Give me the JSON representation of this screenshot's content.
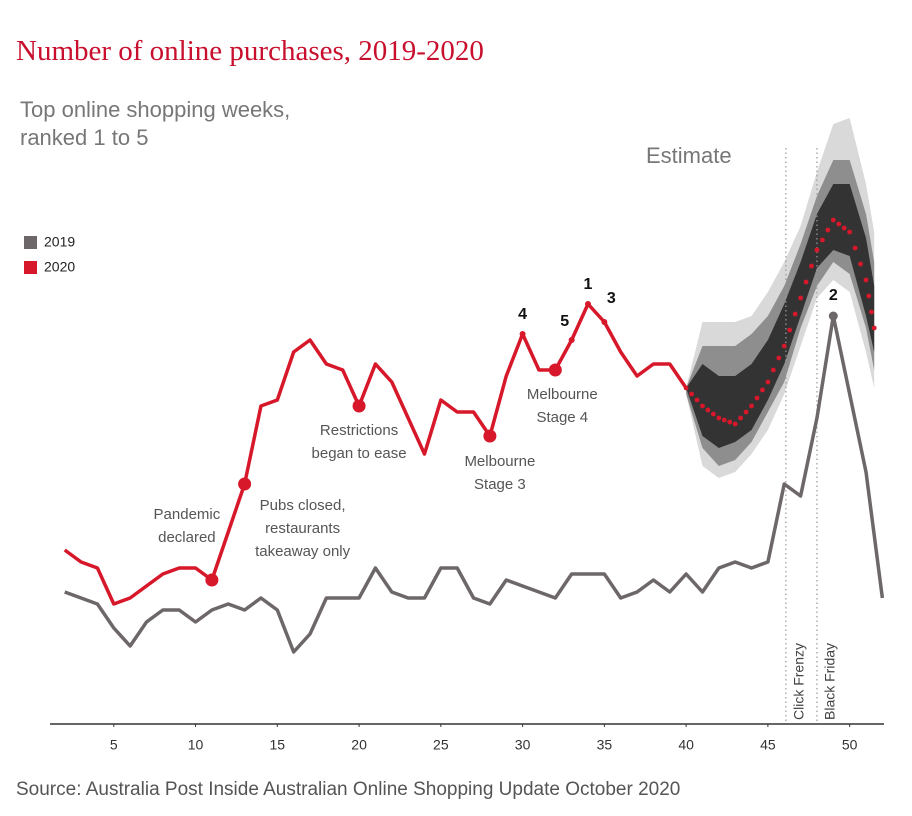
{
  "chart_data": {
    "type": "line",
    "title": "Number of online purchases, 2019-2020",
    "subtitle": [
      "Top online shopping weeks,",
      "ranked 1 to 5"
    ],
    "source": "Source: Australia Post Inside Australian Online Shopping Update October 2020",
    "xlim": [
      1.1,
      52.1
    ],
    "xticks": [
      5,
      10,
      15,
      20,
      25,
      30,
      35,
      40,
      45,
      50
    ],
    "ylim": [
      0,
      104
    ],
    "series": [
      {
        "name": "2019",
        "color": "#6d6769",
        "x": [
          2,
          3,
          4,
          5,
          6,
          7,
          8,
          9,
          10,
          11,
          12,
          13,
          14,
          15,
          16,
          17,
          18,
          19,
          20,
          21,
          22,
          23,
          24,
          25,
          26,
          27,
          28,
          29,
          30,
          31,
          32,
          33,
          34,
          35,
          36,
          37,
          38,
          39,
          40,
          41,
          42,
          43,
          44,
          45,
          46,
          47,
          48,
          49,
          50,
          51,
          52
        ],
        "values": [
          22,
          21,
          20,
          16,
          13,
          17,
          19,
          19,
          17,
          19,
          20,
          19,
          21,
          19,
          12,
          15,
          21,
          21,
          21,
          26,
          22,
          21,
          21,
          26,
          26,
          21,
          20,
          24,
          23,
          22,
          21,
          25,
          25,
          25,
          21,
          22,
          24,
          22,
          25,
          22,
          26,
          27,
          26,
          27,
          40,
          38,
          51,
          68,
          55,
          42,
          21
        ]
      },
      {
        "name": "2020",
        "color": "#d7182a",
        "x": [
          2,
          3,
          4,
          5,
          6,
          7,
          8,
          9,
          10,
          11,
          12,
          13,
          14,
          15,
          16,
          17,
          18,
          19,
          20,
          21,
          22,
          23,
          24,
          25,
          26,
          27,
          28,
          29,
          30,
          31,
          32,
          33,
          34,
          35,
          36,
          37,
          38,
          39,
          40
        ],
        "values": [
          29,
          27,
          26,
          20,
          21,
          23,
          25,
          26,
          26,
          24,
          32,
          40,
          53,
          54,
          62,
          64,
          60,
          59,
          53,
          60,
          57,
          51,
          45,
          54,
          52,
          52,
          48,
          58,
          65,
          59,
          59,
          64,
          70,
          67,
          62,
          58,
          60,
          60,
          56
        ]
      }
    ],
    "estimate": {
      "label": "Estimate",
      "color": "#d7182a",
      "x": [
        40,
        41,
        42,
        43,
        44,
        45,
        46,
        47,
        48,
        49,
        50,
        51,
        51.5
      ],
      "values": [
        56,
        53,
        51,
        50,
        53,
        57,
        63,
        71,
        79,
        84,
        82,
        74,
        66
      ],
      "bands": [
        {
          "color": "#d9d9d9",
          "upper": [
            56,
            67,
            67,
            67,
            68,
            72,
            77,
            83,
            92,
            100,
            101,
            90,
            82
          ],
          "lower": [
            55,
            43,
            41,
            42,
            45,
            49,
            55,
            63,
            71,
            74,
            72,
            62,
            56
          ]
        },
        {
          "color": "#8e8e8e",
          "upper": [
            56,
            63,
            63,
            63,
            65,
            68,
            73,
            80,
            88,
            94,
            94,
            85,
            77
          ],
          "lower": [
            55,
            46,
            43,
            44,
            47,
            52,
            57,
            66,
            73,
            77,
            75,
            66,
            59
          ]
        },
        {
          "color": "#333333",
          "upper": [
            56,
            60,
            58,
            58,
            60,
            64,
            70,
            77,
            85,
            90,
            90,
            81,
            73
          ],
          "lower": [
            56,
            48,
            46,
            47,
            49,
            54,
            60,
            68,
            76,
            79,
            78,
            68,
            62
          ]
        }
      ]
    },
    "events": [
      {
        "label": "Click Frenzy",
        "x": 46.1
      },
      {
        "label": "Black Friday",
        "x": 48.0
      }
    ],
    "annotations": [
      {
        "lines": [
          "Pandemic",
          "declared"
        ],
        "series": 1,
        "point": 9
      },
      {
        "lines": [
          "Pubs closed,",
          "restaurants",
          "takeaway only"
        ],
        "series": 1,
        "point": 11
      },
      {
        "lines": [
          "Restrictions",
          "began to ease"
        ],
        "series": 1,
        "point": 18
      },
      {
        "lines": [
          "Melbourne",
          "Stage 3"
        ],
        "series": 1,
        "point": 26
      },
      {
        "lines": [
          "Melbourne",
          "Stage 4"
        ],
        "series": 1,
        "point": 30
      }
    ],
    "ranks": [
      {
        "rank": 4,
        "series": 1,
        "point": 28
      },
      {
        "rank": 5,
        "series": 1,
        "point": 31
      },
      {
        "rank": 1,
        "series": 1,
        "point": 32
      },
      {
        "rank": 3,
        "series": 1,
        "point": 33
      },
      {
        "rank": 2,
        "series": 0,
        "point": 47
      }
    ]
  }
}
